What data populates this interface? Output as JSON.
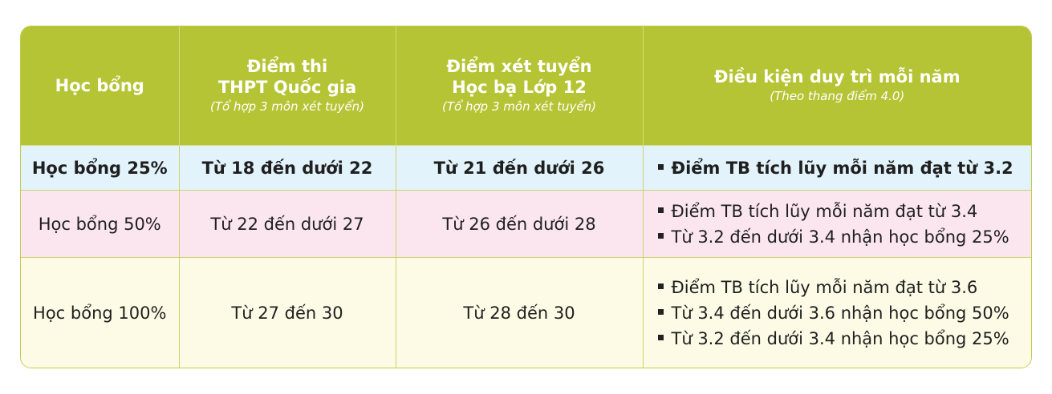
{
  "colors": {
    "header": "#b5c435",
    "row_25": "#e3f3fb",
    "row_50": "#fbe6ef",
    "row_100": "#fdfbe6"
  },
  "header": {
    "col1": "Học bổng",
    "col2_line1": "Điểm thi",
    "col2_line2": "THPT Quốc gia",
    "col2_sub": "(Tổ hợp 3 môn xét tuyển)",
    "col3_line1": "Điểm xét tuyển",
    "col3_line2": "Học bạ Lớp 12",
    "col3_sub": "(Tổ hợp 3 môn xét tuyển)",
    "col4": "Điều kiện duy trì mỗi năm",
    "col4_sub": "(Theo thang điểm 4.0)"
  },
  "rows": [
    {
      "name": "Học bổng 25%",
      "thpt": "Từ 18 đến dưới 22",
      "hocba": "Từ 21 đến dưới 26",
      "conditions": [
        "Điểm TB tích lũy mỗi năm đạt từ 3.2"
      ]
    },
    {
      "name": "Học bổng 50%",
      "thpt": "Từ 22 đến dưới 27",
      "hocba": "Từ 26 đến dưới 28",
      "conditions": [
        "Điểm TB tích lũy mỗi năm đạt từ 3.4",
        "Từ 3.2 đến dưới 3.4 nhận học bổng 25%"
      ]
    },
    {
      "name": "Học bổng 100%",
      "thpt": "Từ 27 đến 30",
      "hocba": "Từ 28 đến 30",
      "conditions": [
        "Điểm TB tích lũy mỗi năm đạt từ 3.6",
        "Từ 3.4 đến dưới 3.6 nhận học bổng 50%",
        "Từ 3.2 đến dưới 3.4 nhận học bổng 25%"
      ]
    }
  ]
}
